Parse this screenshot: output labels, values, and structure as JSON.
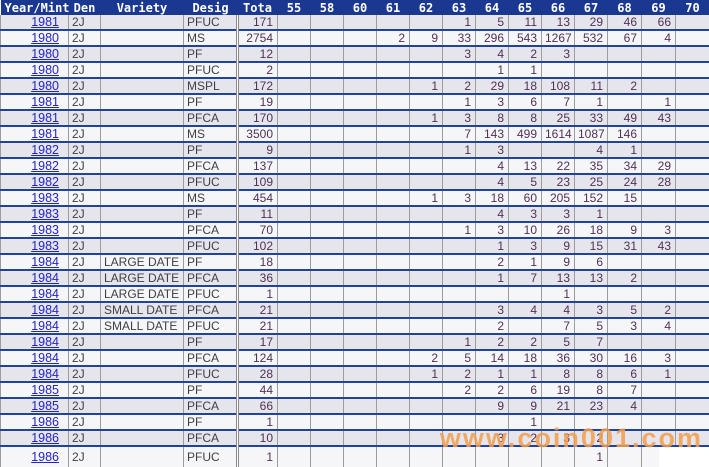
{
  "header": {
    "label_columns": [
      "Year/Mint",
      "Den",
      "Variety",
      "Desig",
      "Tota"
    ],
    "grade_columns": [
      "55",
      "58",
      "60",
      "61",
      "62",
      "63",
      "64",
      "65",
      "66",
      "67",
      "68",
      "69",
      "70"
    ]
  },
  "rows": [
    {
      "year": "1981",
      "den": "2J",
      "variety": "",
      "desig": "PFUC",
      "total": "171",
      "grades": {
        "63": "1",
        "64": "5",
        "65": "11",
        "66": "13",
        "67": "29",
        "68": "46",
        "69": "66"
      }
    },
    {
      "year": "1980",
      "den": "2J",
      "variety": "",
      "desig": "MS",
      "total": "2754",
      "grades": {
        "61": "2",
        "62": "9",
        "63": "33",
        "64": "296",
        "65": "543",
        "66": "1267",
        "67": "532",
        "68": "67",
        "69": "4"
      }
    },
    {
      "year": "1980",
      "den": "2J",
      "variety": "",
      "desig": "PF",
      "total": "12",
      "grades": {
        "63": "3",
        "64": "4",
        "65": "2",
        "66": "3"
      }
    },
    {
      "year": "1980",
      "den": "2J",
      "variety": "",
      "desig": "PFUC",
      "total": "2",
      "grades": {
        "64": "1",
        "65": "1"
      }
    },
    {
      "year": "1980",
      "den": "2J",
      "variety": "",
      "desig": "MSPL",
      "total": "172",
      "grades": {
        "62": "1",
        "63": "2",
        "64": "29",
        "65": "18",
        "66": "108",
        "67": "11",
        "68": "2"
      }
    },
    {
      "year": "1981",
      "den": "2J",
      "variety": "",
      "desig": "PF",
      "total": "19",
      "grades": {
        "63": "1",
        "64": "3",
        "65": "6",
        "66": "7",
        "67": "1",
        "69": "1"
      }
    },
    {
      "year": "1981",
      "den": "2J",
      "variety": "",
      "desig": "PFCA",
      "total": "170",
      "grades": {
        "62": "1",
        "63": "3",
        "64": "8",
        "65": "8",
        "66": "25",
        "67": "33",
        "68": "49",
        "69": "43"
      }
    },
    {
      "year": "1981",
      "den": "2J",
      "variety": "",
      "desig": "MS",
      "total": "3500",
      "grades": {
        "63": "7",
        "64": "143",
        "65": "499",
        "66": "1614",
        "67": "1087",
        "68": "146"
      }
    },
    {
      "year": "1982",
      "den": "2J",
      "variety": "",
      "desig": "PF",
      "total": "9",
      "grades": {
        "63": "1",
        "64": "3",
        "67": "4",
        "68": "1"
      }
    },
    {
      "year": "1982",
      "den": "2J",
      "variety": "",
      "desig": "PFCA",
      "total": "137",
      "grades": {
        "64": "4",
        "65": "13",
        "66": "22",
        "67": "35",
        "68": "34",
        "69": "29"
      }
    },
    {
      "year": "1982",
      "den": "2J",
      "variety": "",
      "desig": "PFUC",
      "total": "109",
      "grades": {
        "64": "4",
        "65": "5",
        "66": "23",
        "67": "25",
        "68": "24",
        "69": "28"
      }
    },
    {
      "year": "1983",
      "den": "2J",
      "variety": "",
      "desig": "MS",
      "total": "454",
      "grades": {
        "62": "1",
        "63": "3",
        "64": "18",
        "65": "60",
        "66": "205",
        "67": "152",
        "68": "15"
      }
    },
    {
      "year": "1983",
      "den": "2J",
      "variety": "",
      "desig": "PF",
      "total": "11",
      "grades": {
        "64": "4",
        "65": "3",
        "66": "3",
        "67": "1"
      }
    },
    {
      "year": "1983",
      "den": "2J",
      "variety": "",
      "desig": "PFCA",
      "total": "70",
      "grades": {
        "63": "1",
        "64": "3",
        "65": "10",
        "66": "26",
        "67": "18",
        "68": "9",
        "69": "3"
      }
    },
    {
      "year": "1983",
      "den": "2J",
      "variety": "",
      "desig": "PFUC",
      "total": "102",
      "grades": {
        "64": "1",
        "65": "3",
        "66": "9",
        "67": "15",
        "68": "31",
        "69": "43"
      }
    },
    {
      "year": "1984",
      "den": "2J",
      "variety": "LARGE DATE",
      "desig": "PF",
      "total": "18",
      "grades": {
        "64": "2",
        "65": "1",
        "66": "9",
        "67": "6"
      }
    },
    {
      "year": "1984",
      "den": "2J",
      "variety": "LARGE DATE",
      "desig": "PFCA",
      "total": "36",
      "grades": {
        "64": "1",
        "65": "7",
        "66": "13",
        "67": "13",
        "68": "2"
      }
    },
    {
      "year": "1984",
      "den": "2J",
      "variety": "LARGE DATE",
      "desig": "PFUC",
      "total": "1",
      "grades": {
        "66": "1"
      }
    },
    {
      "year": "1984",
      "den": "2J",
      "variety": "SMALL DATE",
      "desig": "PFCA",
      "total": "21",
      "grades": {
        "64": "3",
        "65": "4",
        "66": "4",
        "67": "3",
        "68": "5",
        "69": "2"
      }
    },
    {
      "year": "1984",
      "den": "2J",
      "variety": "SMALL DATE",
      "desig": "PFUC",
      "total": "21",
      "grades": {
        "64": "2",
        "66": "7",
        "67": "5",
        "68": "3",
        "69": "4"
      }
    },
    {
      "year": "1984",
      "den": "2J",
      "variety": "",
      "desig": "PF",
      "total": "17",
      "grades": {
        "63": "1",
        "64": "2",
        "65": "2",
        "66": "5",
        "67": "7"
      }
    },
    {
      "year": "1984",
      "den": "2J",
      "variety": "",
      "desig": "PFCA",
      "total": "124",
      "grades": {
        "62": "2",
        "63": "5",
        "64": "14",
        "65": "18",
        "66": "36",
        "67": "30",
        "68": "16",
        "69": "3"
      }
    },
    {
      "year": "1984",
      "den": "2J",
      "variety": "",
      "desig": "PFUC",
      "total": "28",
      "grades": {
        "62": "1",
        "63": "2",
        "64": "1",
        "65": "1",
        "66": "8",
        "67": "8",
        "68": "6",
        "69": "1"
      }
    },
    {
      "year": "1985",
      "den": "2J",
      "variety": "",
      "desig": "PF",
      "total": "44",
      "grades": {
        "63": "2",
        "64": "2",
        "65": "6",
        "66": "19",
        "67": "8",
        "68": "7"
      }
    },
    {
      "year": "1985",
      "den": "2J",
      "variety": "",
      "desig": "PFCA",
      "total": "66",
      "grades": {
        "64": "9",
        "65": "9",
        "66": "21",
        "67": "23",
        "68": "4"
      }
    },
    {
      "year": "1986",
      "den": "2J",
      "variety": "",
      "desig": "PF",
      "total": "1",
      "grades": {
        "65": "1"
      }
    },
    {
      "year": "1986",
      "den": "2J",
      "variety": "",
      "desig": "PFCA",
      "total": "10",
      "grades": {
        "64": "3",
        "65": "2",
        "66": "3",
        "67": "2"
      }
    },
    {
      "year": "1986",
      "den": "2J",
      "variety": "",
      "desig": "PFUC",
      "total": "1",
      "grades": {
        "67": "1"
      }
    }
  ],
  "watermark": {
    "text": "www.coin001.com"
  },
  "colors": {
    "navy": "#1B3890",
    "line-blue": "#2143A0",
    "grid": "#9C9C9C",
    "row-gray": "#E5E5EB",
    "row-white": "#F6F6F8",
    "link": "#2323CB",
    "num": "#4F3256",
    "label": "#3F3F46"
  }
}
